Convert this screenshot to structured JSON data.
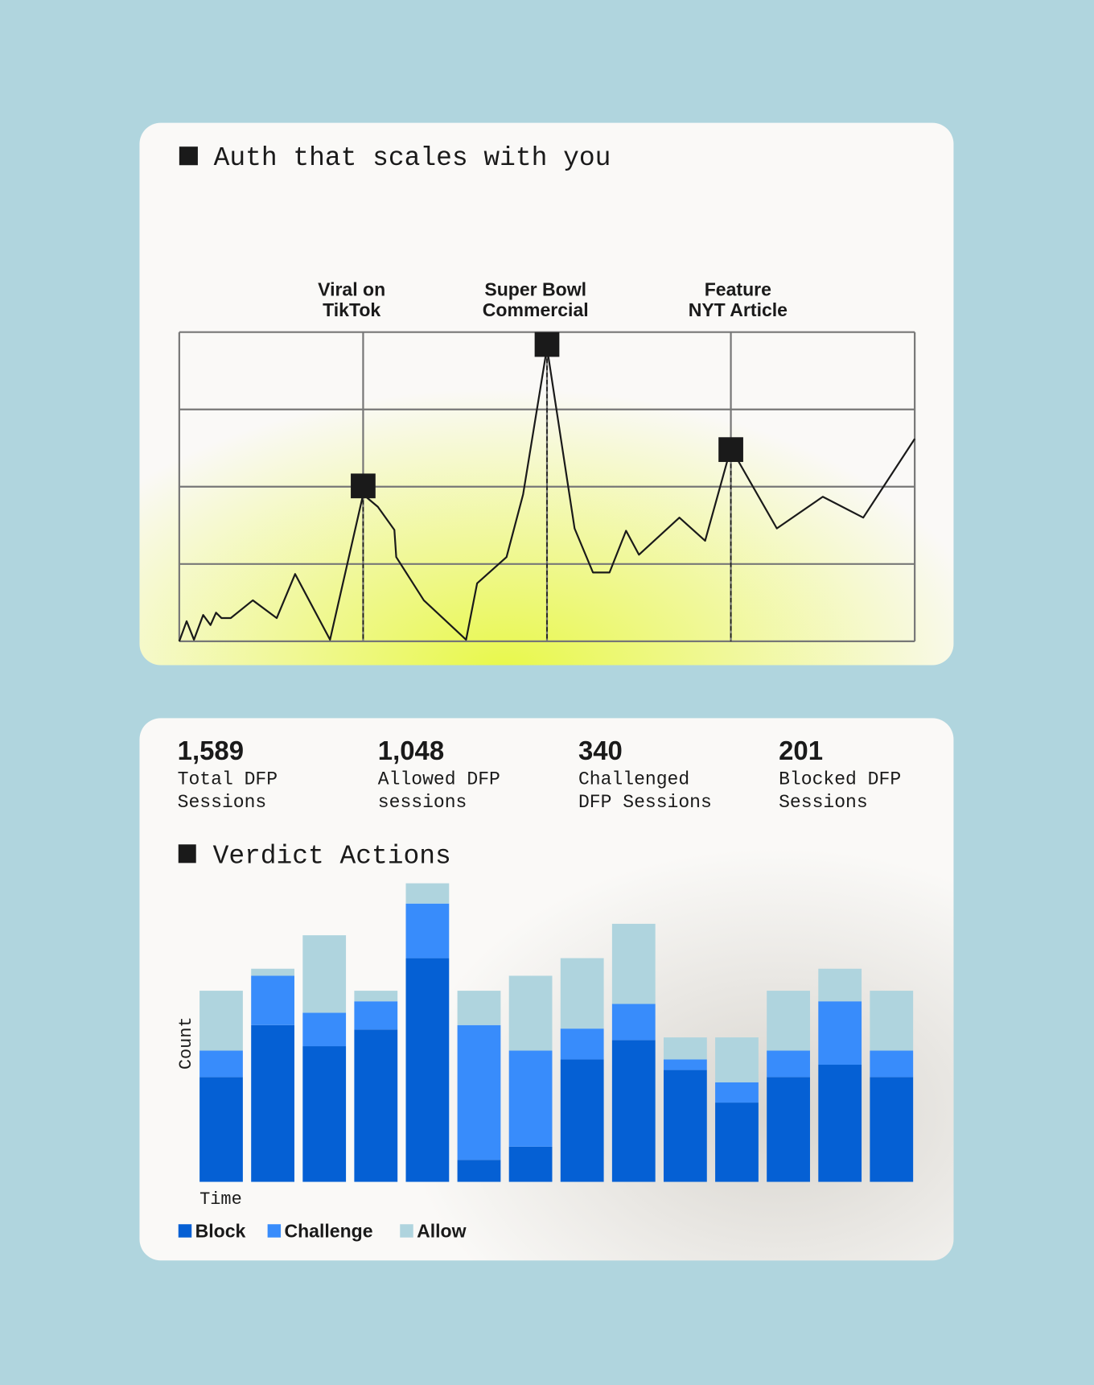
{
  "chart_data": [
    {
      "type": "line",
      "title": "Auth that scales with you",
      "color": "#1a1a1a",
      "grid": true,
      "xlim": [
        0,
        4
      ],
      "xticks": [
        0,
        1,
        2,
        3,
        4
      ],
      "ylim": [
        0,
        4
      ],
      "yticks": [
        0,
        1,
        2,
        3,
        4
      ],
      "x": [
        0,
        0.04,
        0.08,
        0.13,
        0.17,
        0.2,
        0.23,
        0.28,
        0.4,
        0.53,
        0.63,
        0.82,
        1.0,
        1.08,
        1.17,
        1.18,
        1.33,
        1.56,
        1.62,
        1.78,
        1.87,
        2.0,
        2.15,
        2.25,
        2.34,
        2.43,
        2.5,
        2.72,
        2.86,
        3.0,
        3.25,
        3.5,
        3.72,
        4.0
      ],
      "values": [
        0,
        0.26,
        0.02,
        0.34,
        0.21,
        0.37,
        0.3,
        0.3,
        0.53,
        0.3,
        0.87,
        0.02,
        1.9,
        1.74,
        1.44,
        1.09,
        0.53,
        0.02,
        0.75,
        1.09,
        1.9,
        3.8,
        1.46,
        0.89,
        0.89,
        1.43,
        1.12,
        1.6,
        1.3,
        2.5,
        1.46,
        1.87,
        1.6,
        2.62
      ],
      "annotations": [
        {
          "label": [
            "Viral on",
            "TikTok"
          ],
          "x": 1,
          "y": 2.01
        },
        {
          "label": [
            "Super Bowl",
            "Commercial"
          ],
          "x": 2,
          "y": 3.84
        },
        {
          "label": [
            "Feature",
            "NYT Article"
          ],
          "x": 3,
          "y": 2.48
        }
      ]
    },
    {
      "type": "stacked_bar",
      "title": "Verdict Actions",
      "xlabel": "Time",
      "ylabel": "Count",
      "ylim": [
        0,
        340
      ],
      "stats": [
        {
          "value": 1589,
          "label": "1,589",
          "caption": [
            "Total DFP",
            "Sessions"
          ]
        },
        {
          "value": 1048,
          "label": "1,048",
          "caption": [
            "Allowed DFP",
            "sessions"
          ]
        },
        {
          "value": 340,
          "label": "340",
          "caption": [
            "Challenged",
            "DFP Sessions"
          ]
        },
        {
          "value": 201,
          "label": "201",
          "caption": [
            "Blocked DFP",
            "Sessions"
          ]
        }
      ],
      "categories": [
        null,
        null,
        null,
        null,
        null,
        null,
        null,
        null,
        null,
        null,
        null,
        null,
        null,
        null
      ],
      "series": [
        {
          "name": "Block",
          "color": "#0560d4",
          "values": [
            119,
            178,
            154,
            173,
            254,
            25,
            40,
            139,
            161,
            127,
            90,
            119,
            133,
            119
          ]
        },
        {
          "name": "Challenge",
          "color": "#388cfb",
          "values": [
            30,
            56,
            38,
            32,
            62,
            153,
            109,
            35,
            41,
            12,
            23,
            30,
            72,
            30
          ]
        },
        {
          "name": "Allow",
          "color": "#afd4de",
          "values": [
            68,
            8,
            88,
            12,
            23,
            39,
            85,
            80,
            91,
            25,
            51,
            68,
            37,
            68
          ]
        }
      ]
    }
  ]
}
